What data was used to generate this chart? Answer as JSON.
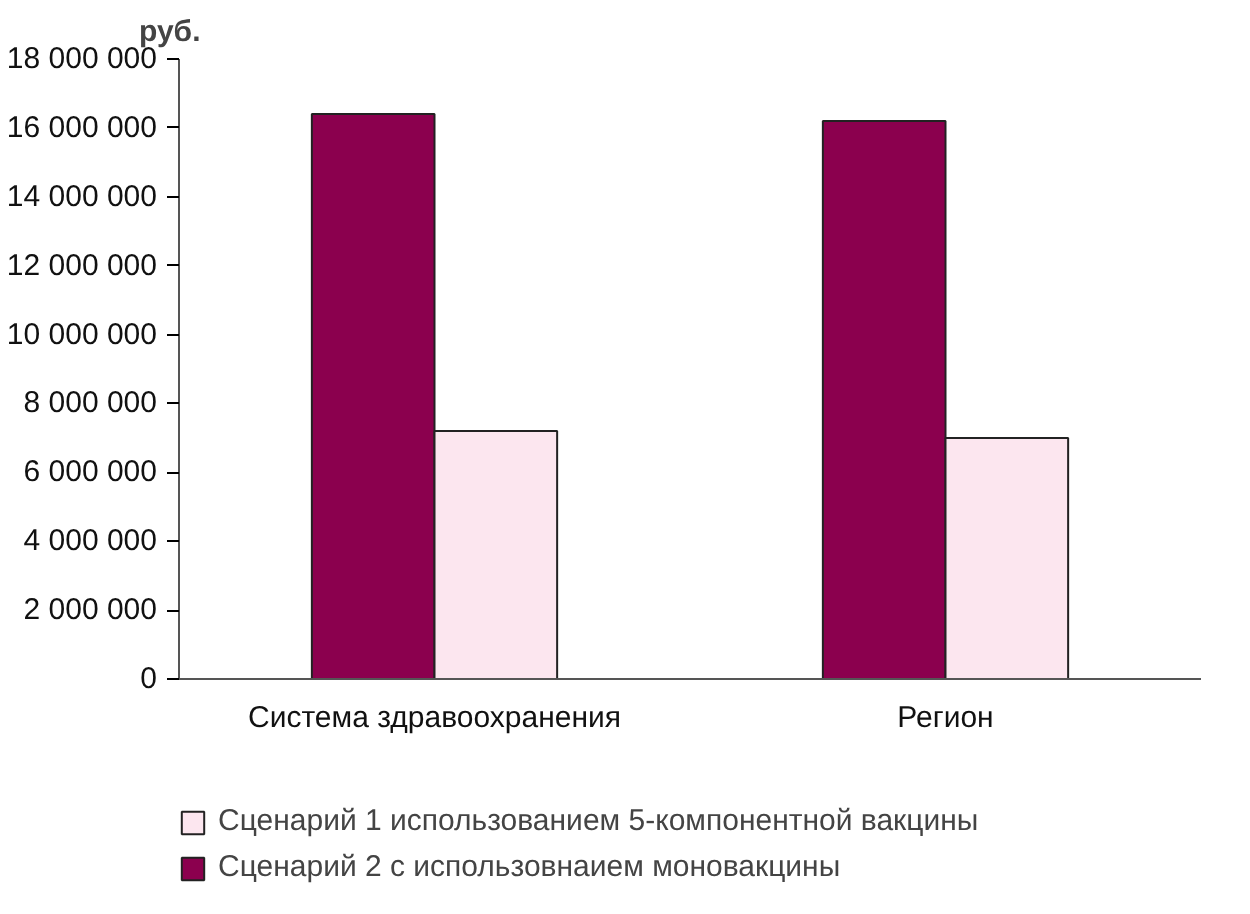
{
  "chart_data": {
    "type": "bar",
    "ylabel": "руб.",
    "categories": [
      "Система здравоохранения",
      "Регион"
    ],
    "series": [
      {
        "name": "Сценарий 2 с использовнаием моновакцины",
        "color": "#8b004e",
        "values": [
          16400000,
          16200000
        ]
      },
      {
        "name": "Сценарий 1 использованием 5-компонентной вакцины",
        "color": "#fce6ef",
        "values": [
          7200000,
          7000000
        ]
      }
    ],
    "ylim": [
      0,
      18000000
    ],
    "yticks": [
      {
        "value": 0,
        "label": "0"
      },
      {
        "value": 2000000,
        "label": "2 000 000"
      },
      {
        "value": 4000000,
        "label": "4 000 000"
      },
      {
        "value": 6000000,
        "label": "6 000 000"
      },
      {
        "value": 8000000,
        "label": "8 000 000"
      },
      {
        "value": 10000000,
        "label": "10 000 000"
      },
      {
        "value": 12000000,
        "label": "12 000 000"
      },
      {
        "value": 14000000,
        "label": "14 000 000"
      },
      {
        "value": 16000000,
        "label": "16 000 000"
      },
      {
        "value": 18000000,
        "label": "18 000 000"
      }
    ],
    "grid": false,
    "legend": "bottom"
  }
}
